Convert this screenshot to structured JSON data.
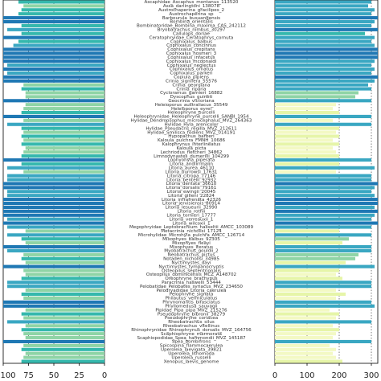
{
  "chart_data": {
    "type": "bar",
    "left_panel": {
      "xlim": [
        100,
        0
      ],
      "ticks": [
        "100",
        "75",
        "50",
        "25",
        "0"
      ]
    },
    "right_panel": {
      "xlim": [
        0,
        320
      ],
      "ticks": [
        "0",
        "100",
        "200",
        "300"
      ]
    },
    "categories": [
      "Ascaphidae_Ascaphus_montanus_113520",
      "Assa_darlingtoni_138078",
      "Austrochaperina_gracilipes_2",
      "Austrochaperina_sp",
      "Barbourula_busuangensis",
      "Bombina_orientalis",
      "Bombinatoridae_Bombina_maxima_CAS_242112",
      "Bryobatrachus_nimbus_30297",
      "Callulops_doriae",
      "Ceratophryidae_Ceratophrys_cornuta",
      "Cophixalus_balbus",
      "Cophixalus_concinnus",
      "Cophixalus_crepitans",
      "Cophixalus_hosmeri_3",
      "Cophixalus_infacetus",
      "Cophixalus_mcdonaldi",
      "Cophixalus_neglectus",
      "Cophixalus_ornatus",
      "Cophixalus_parkeri",
      "Copiula_pipiens",
      "Crinia_signifera_55576",
      "Crinia_georgiana",
      "Crinia_riparia",
      "Cycloramus_garnieri_16882",
      "Dyscophus_guineti",
      "Geocrinia_victoriana",
      "Heleioporus_australiacus_35549",
      "Heleioporus_eyrei",
      "Heleophryne_purcelli",
      "Heleophrynidae_Heleophryne_purcelli_SANBI_1954",
      "Hylidae_Dendropsophus_microcephalus_MVZ_264363",
      "Hylidae_Hyla_arenicolor",
      "Hylidae_Pseudacris_regilla_MVZ_212611",
      "Hylidae_Smilisca_fodiens_MVZ_014191",
      "Hypopachus_barberi",
      "Kaloula_pulchra_FMNH_10686",
      "Kalophrynus_interlineatus",
      "Kaloula_picta",
      "Lechriodus_fletcheri_34862",
      "Limnodynastes_dumerilii_104299",
      "Lophyohyla_piperata",
      "Litoria_andiirrmalin",
      "Litoria_aurea_46110",
      "Litoria_burrowsi_17631",
      "Litoria_citropa_77146",
      "Litoria_bentelli_92932",
      "Litoria_dentata_36610",
      "Litoria_dorsalis_79161",
      "Litoria_ewingii_20045",
      "Litoria_gilleni_22824",
      "Litoria_infrafrenata_42326",
      "Litoria_jervisiensis_80914",
      "Litoria_lesueurii_32990",
      "Litoria_rothii",
      "Litoria_tornieri_17777",
      "Litoria_verreauxii_1",
      "Litoria_wilcoxii_1",
      "Megophryidae_Leptobrachium_hasseltii_AMCC_103089",
      "Metacrinia_nichollsi_17124",
      "Microhylidae_Microhyla_pulchra_AMCC_126714",
      "Mixophyes_balbus_92305",
      "Mixophyes_fleayi",
      "Mixophyes_iteratus",
      "Myobatrachus_gouldii_2",
      "Neobatrachus_pictus",
      "Notaden_nichollsi_34985",
      "Nyctimystes_dayi",
      "Nyctimystes_tympanocryptis",
      "Osteopilus_septentrionalis",
      "Osteopilus_dominicensis_MCZ_A148702",
      "Oreophryne_brachypus",
      "Paracrinia_haswelli_53444",
      "Pelobatidae_Pelobates_syriacus_MVZ_234650",
      "Pelodryadidae_Litoria_caerulea",
      "Pelophryne_signata",
      "Philautus_vermiculatus",
      "Phrynomantis_bifasciatus",
      "Phyllomedusa_sauvagii",
      "Pipidae_Pipa_pipa_MVZ_215276",
      "Pseudophryne_bibronii_38279",
      "Pseudophryne_coriacea",
      "Rheobatrachus_silus",
      "Rheobatrachus_vitellinus",
      "Rhinophrynidae_Rhinophrynus_dorsalis_MVZ_164756",
      "Scaphiophryne_marmorata",
      "Scaphiopodidae_Spea_hammondii_MVZ_145187",
      "Spea_bombifrons",
      "Spicospina_flammocaerulea",
      "Uperoleia_laevigata_39821",
      "Uperoleia_lithomoda",
      "Uperoleia_russelli",
      "Xenopus_laevis_genome"
    ],
    "left_values": [
      85,
      80,
      82,
      85,
      100,
      100,
      82,
      96,
      82,
      100,
      85,
      90,
      100,
      100,
      100,
      100,
      96,
      100,
      96,
      100,
      100,
      80,
      82,
      78,
      78,
      100,
      78,
      80,
      82,
      100,
      80,
      96,
      82,
      80,
      82,
      80,
      82,
      78,
      80,
      82,
      100,
      82,
      96,
      80,
      96,
      96,
      100,
      100,
      96,
      96,
      100,
      100,
      100,
      100,
      100,
      96,
      100,
      96,
      78,
      96,
      82,
      78,
      100,
      96,
      80,
      82,
      78,
      100,
      80,
      78,
      82,
      96,
      96,
      78,
      82,
      80,
      100,
      100,
      78,
      82,
      80,
      96,
      78,
      82,
      80,
      78,
      100,
      80,
      82,
      78,
      80,
      82
    ],
    "right_values": [
      300,
      290,
      310,
      300,
      320,
      310,
      300,
      320,
      280,
      310,
      300,
      310,
      320,
      320,
      320,
      310,
      300,
      310,
      300,
      320,
      310,
      290,
      300,
      260,
      250,
      300,
      190,
      180,
      200,
      300,
      180,
      300,
      200,
      190,
      200,
      180,
      200,
      180,
      190,
      200,
      300,
      200,
      310,
      190,
      300,
      300,
      320,
      310,
      300,
      310,
      320,
      320,
      310,
      320,
      310,
      300,
      320,
      300,
      200,
      300,
      230,
      210,
      300,
      300,
      260,
      250,
      220,
      310,
      200,
      190,
      210,
      300,
      300,
      190,
      220,
      190,
      300,
      310,
      170,
      200,
      190,
      300,
      180,
      200,
      190,
      180,
      300,
      170,
      190,
      180,
      190,
      210
    ],
    "palette": {
      "dark": "#1f78b4",
      "mid": "#3aa7c2",
      "teal": "#35b8ad",
      "green": "#8fd4a6",
      "light": "#e6f5a8",
      "pale": "#f3f9c4"
    },
    "grid": "dotted-vertical"
  }
}
